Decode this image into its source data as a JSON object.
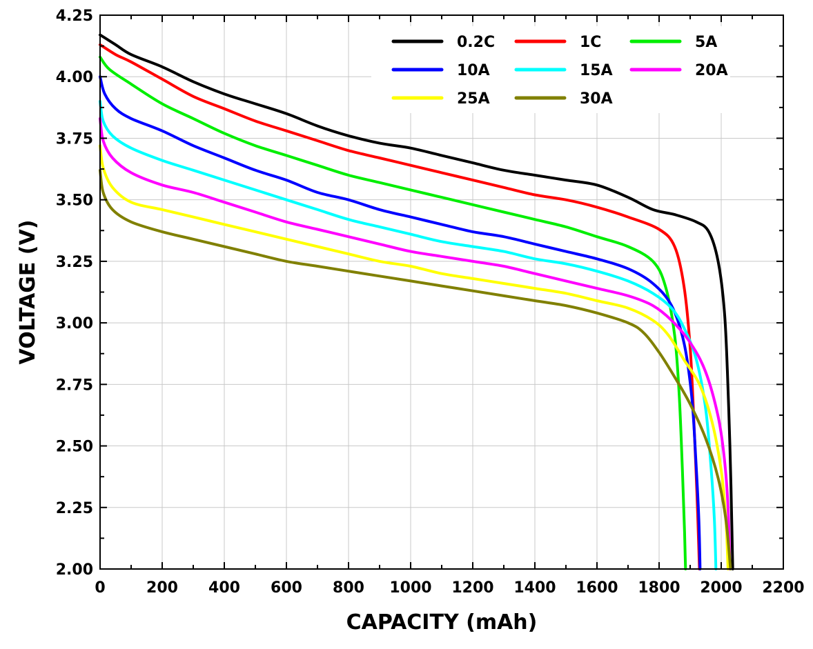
{
  "chart_data": {
    "type": "line",
    "xlabel": "CAPACITY (mAh)",
    "ylabel": "VOLTAGE (V)",
    "xlim": [
      0,
      2200
    ],
    "ylim": [
      2.0,
      4.25
    ],
    "x_ticks": [
      "0",
      "200",
      "400",
      "600",
      "800",
      "1000",
      "1200",
      "1400",
      "1600",
      "1800",
      "2000",
      "2200"
    ],
    "y_ticks": [
      "2.00",
      "2.25",
      "2.50",
      "2.75",
      "3.00",
      "3.25",
      "3.50",
      "3.75",
      "4.00",
      "4.25"
    ],
    "grid": true,
    "legend_position": "top-right",
    "series": [
      {
        "name": "0.2C",
        "color": "#000000",
        "points": [
          [
            0,
            4.17
          ],
          [
            50,
            4.13
          ],
          [
            100,
            4.09
          ],
          [
            200,
            4.04
          ],
          [
            300,
            3.98
          ],
          [
            400,
            3.93
          ],
          [
            500,
            3.89
          ],
          [
            600,
            3.85
          ],
          [
            700,
            3.8
          ],
          [
            800,
            3.76
          ],
          [
            900,
            3.73
          ],
          [
            1000,
            3.71
          ],
          [
            1100,
            3.68
          ],
          [
            1200,
            3.65
          ],
          [
            1300,
            3.62
          ],
          [
            1400,
            3.6
          ],
          [
            1500,
            3.58
          ],
          [
            1600,
            3.56
          ],
          [
            1700,
            3.51
          ],
          [
            1780,
            3.46
          ],
          [
            1850,
            3.44
          ],
          [
            1920,
            3.41
          ],
          [
            1960,
            3.37
          ],
          [
            1990,
            3.25
          ],
          [
            2010,
            3.05
          ],
          [
            2020,
            2.8
          ],
          [
            2028,
            2.5
          ],
          [
            2033,
            2.25
          ],
          [
            2037,
            2.0
          ]
        ]
      },
      {
        "name": "1C",
        "color": "#ff0000",
        "points": [
          [
            0,
            4.13
          ],
          [
            50,
            4.09
          ],
          [
            100,
            4.06
          ],
          [
            200,
            3.99
          ],
          [
            300,
            3.92
          ],
          [
            400,
            3.87
          ],
          [
            500,
            3.82
          ],
          [
            600,
            3.78
          ],
          [
            700,
            3.74
          ],
          [
            800,
            3.7
          ],
          [
            900,
            3.67
          ],
          [
            1000,
            3.64
          ],
          [
            1100,
            3.61
          ],
          [
            1200,
            3.58
          ],
          [
            1300,
            3.55
          ],
          [
            1400,
            3.52
          ],
          [
            1500,
            3.5
          ],
          [
            1600,
            3.47
          ],
          [
            1700,
            3.43
          ],
          [
            1800,
            3.38
          ],
          [
            1850,
            3.31
          ],
          [
            1880,
            3.15
          ],
          [
            1900,
            2.9
          ],
          [
            1912,
            2.6
          ],
          [
            1922,
            2.3
          ],
          [
            1930,
            2.0
          ]
        ]
      },
      {
        "name": "5A",
        "color": "#00ee00",
        "points": [
          [
            0,
            4.08
          ],
          [
            30,
            4.03
          ],
          [
            100,
            3.97
          ],
          [
            200,
            3.89
          ],
          [
            300,
            3.83
          ],
          [
            400,
            3.77
          ],
          [
            500,
            3.72
          ],
          [
            600,
            3.68
          ],
          [
            700,
            3.64
          ],
          [
            800,
            3.6
          ],
          [
            900,
            3.57
          ],
          [
            1000,
            3.54
          ],
          [
            1100,
            3.51
          ],
          [
            1200,
            3.48
          ],
          [
            1300,
            3.45
          ],
          [
            1400,
            3.42
          ],
          [
            1500,
            3.39
          ],
          [
            1600,
            3.35
          ],
          [
            1700,
            3.31
          ],
          [
            1780,
            3.25
          ],
          [
            1820,
            3.15
          ],
          [
            1850,
            2.95
          ],
          [
            1865,
            2.7
          ],
          [
            1875,
            2.4
          ],
          [
            1882,
            2.15
          ],
          [
            1885,
            2.0
          ]
        ]
      },
      {
        "name": "10A",
        "color": "#0000ff",
        "points": [
          [
            0,
            4.0
          ],
          [
            15,
            3.93
          ],
          [
            50,
            3.87
          ],
          [
            100,
            3.83
          ],
          [
            200,
            3.78
          ],
          [
            300,
            3.72
          ],
          [
            400,
            3.67
          ],
          [
            500,
            3.62
          ],
          [
            600,
            3.58
          ],
          [
            700,
            3.53
          ],
          [
            800,
            3.5
          ],
          [
            900,
            3.46
          ],
          [
            1000,
            3.43
          ],
          [
            1100,
            3.4
          ],
          [
            1200,
            3.37
          ],
          [
            1300,
            3.35
          ],
          [
            1400,
            3.32
          ],
          [
            1500,
            3.29
          ],
          [
            1600,
            3.26
          ],
          [
            1700,
            3.22
          ],
          [
            1780,
            3.16
          ],
          [
            1840,
            3.07
          ],
          [
            1880,
            2.92
          ],
          [
            1905,
            2.7
          ],
          [
            1918,
            2.45
          ],
          [
            1928,
            2.2
          ],
          [
            1932,
            2.0
          ]
        ]
      },
      {
        "name": "15A",
        "color": "#00ffff",
        "points": [
          [
            0,
            3.9
          ],
          [
            10,
            3.82
          ],
          [
            40,
            3.76
          ],
          [
            100,
            3.71
          ],
          [
            200,
            3.66
          ],
          [
            300,
            3.62
          ],
          [
            400,
            3.58
          ],
          [
            500,
            3.54
          ],
          [
            600,
            3.5
          ],
          [
            700,
            3.46
          ],
          [
            800,
            3.42
          ],
          [
            900,
            3.39
          ],
          [
            1000,
            3.36
          ],
          [
            1100,
            3.33
          ],
          [
            1200,
            3.31
          ],
          [
            1300,
            3.29
          ],
          [
            1400,
            3.26
          ],
          [
            1500,
            3.24
          ],
          [
            1600,
            3.21
          ],
          [
            1700,
            3.17
          ],
          [
            1780,
            3.12
          ],
          [
            1840,
            3.06
          ],
          [
            1880,
            2.98
          ],
          [
            1920,
            2.85
          ],
          [
            1950,
            2.65
          ],
          [
            1968,
            2.4
          ],
          [
            1978,
            2.2
          ],
          [
            1983,
            2.0
          ]
        ]
      },
      {
        "name": "20A",
        "color": "#ff00ff",
        "points": [
          [
            0,
            3.83
          ],
          [
            10,
            3.74
          ],
          [
            40,
            3.67
          ],
          [
            100,
            3.61
          ],
          [
            200,
            3.56
          ],
          [
            300,
            3.53
          ],
          [
            400,
            3.49
          ],
          [
            500,
            3.45
          ],
          [
            600,
            3.41
          ],
          [
            700,
            3.38
          ],
          [
            800,
            3.35
          ],
          [
            900,
            3.32
          ],
          [
            1000,
            3.29
          ],
          [
            1100,
            3.27
          ],
          [
            1200,
            3.25
          ],
          [
            1300,
            3.23
          ],
          [
            1400,
            3.2
          ],
          [
            1500,
            3.17
          ],
          [
            1600,
            3.14
          ],
          [
            1700,
            3.11
          ],
          [
            1780,
            3.07
          ],
          [
            1840,
            3.01
          ],
          [
            1900,
            2.92
          ],
          [
            1950,
            2.8
          ],
          [
            1990,
            2.62
          ],
          [
            2010,
            2.45
          ],
          [
            2022,
            2.25
          ],
          [
            2028,
            2.0
          ]
        ]
      },
      {
        "name": "25A",
        "color": "#ffff00",
        "points": [
          [
            0,
            3.72
          ],
          [
            10,
            3.63
          ],
          [
            40,
            3.55
          ],
          [
            100,
            3.49
          ],
          [
            200,
            3.46
          ],
          [
            300,
            3.43
          ],
          [
            400,
            3.4
          ],
          [
            500,
            3.37
          ],
          [
            600,
            3.34
          ],
          [
            700,
            3.31
          ],
          [
            800,
            3.28
          ],
          [
            900,
            3.25
          ],
          [
            1000,
            3.23
          ],
          [
            1100,
            3.2
          ],
          [
            1200,
            3.18
          ],
          [
            1300,
            3.16
          ],
          [
            1400,
            3.14
          ],
          [
            1500,
            3.12
          ],
          [
            1600,
            3.09
          ],
          [
            1700,
            3.06
          ],
          [
            1780,
            3.01
          ],
          [
            1830,
            2.95
          ],
          [
            1880,
            2.85
          ],
          [
            1930,
            2.75
          ],
          [
            1970,
            2.6
          ],
          [
            2000,
            2.4
          ],
          [
            2015,
            2.2
          ],
          [
            2022,
            2.0
          ]
        ]
      },
      {
        "name": "30A",
        "color": "#808000",
        "points": [
          [
            0,
            3.62
          ],
          [
            10,
            3.53
          ],
          [
            40,
            3.46
          ],
          [
            100,
            3.41
          ],
          [
            200,
            3.37
          ],
          [
            300,
            3.34
          ],
          [
            400,
            3.31
          ],
          [
            500,
            3.28
          ],
          [
            600,
            3.25
          ],
          [
            700,
            3.23
          ],
          [
            800,
            3.21
          ],
          [
            900,
            3.19
          ],
          [
            1000,
            3.17
          ],
          [
            1100,
            3.15
          ],
          [
            1200,
            3.13
          ],
          [
            1300,
            3.11
          ],
          [
            1400,
            3.09
          ],
          [
            1500,
            3.07
          ],
          [
            1600,
            3.04
          ],
          [
            1700,
            3.0
          ],
          [
            1750,
            2.96
          ],
          [
            1800,
            2.88
          ],
          [
            1850,
            2.78
          ],
          [
            1900,
            2.67
          ],
          [
            1950,
            2.53
          ],
          [
            1990,
            2.37
          ],
          [
            2015,
            2.2
          ],
          [
            2030,
            2.0
          ]
        ]
      }
    ]
  }
}
